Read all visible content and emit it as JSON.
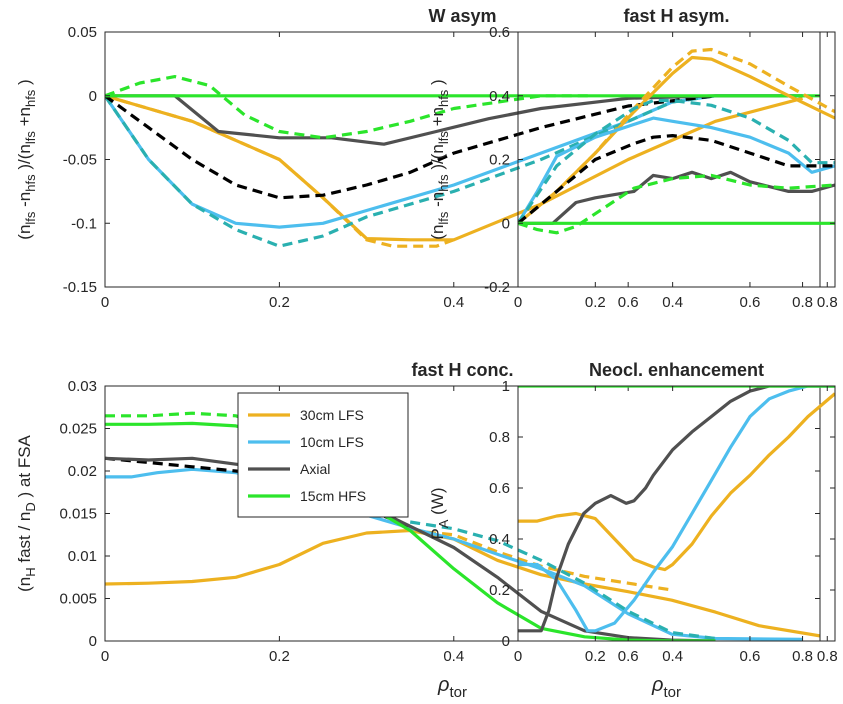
{
  "colors": {
    "orange": "#EDB120",
    "blue": "#4DBEEE",
    "teal": "#2AB0B0",
    "gray": "#505050",
    "green": "#2BE52B",
    "black": "#000000"
  },
  "chart_data": [
    {
      "type": "line",
      "title": "W asym",
      "ylabel": "(n lfs -n hfs )/(n lfs +n hfs )",
      "xlim": [
        0,
        0.82
      ],
      "ylim": [
        -0.15,
        0.05
      ],
      "xticks": [
        "0",
        "0.2",
        "0.4",
        "0.6",
        "0.8"
      ],
      "yticks": [
        "-0.15",
        "-0.1",
        "-0.05",
        "0",
        "0.05"
      ],
      "series": [
        {
          "color": "orange",
          "dashed": false,
          "x": [
            0,
            0.1,
            0.2,
            0.25,
            0.3,
            0.35,
            0.4,
            0.5,
            0.6,
            0.7,
            0.8
          ],
          "y": [
            0,
            -0.02,
            -0.05,
            -0.08,
            -0.112,
            -0.113,
            -0.113,
            -0.085,
            -0.05,
            -0.02,
            -0.002
          ]
        },
        {
          "color": "orange",
          "dashed": true,
          "x": [
            0,
            0.1,
            0.2,
            0.25,
            0.3,
            0.33,
            0.38,
            0.4
          ],
          "y": [
            0,
            -0.02,
            -0.05,
            -0.08,
            -0.113,
            -0.118,
            -0.118,
            -0.113
          ]
        },
        {
          "color": "blue",
          "dashed": false,
          "x": [
            0,
            0.05,
            0.1,
            0.15,
            0.2,
            0.25,
            0.3,
            0.4,
            0.5,
            0.6,
            0.65,
            0.7,
            0.8
          ],
          "y": [
            0,
            -0.05,
            -0.085,
            -0.1,
            -0.103,
            -0.1,
            -0.09,
            -0.07,
            -0.045,
            -0.02,
            -0.005,
            0,
            0
          ]
        },
        {
          "color": "teal",
          "dashed": true,
          "x": [
            0,
            0.05,
            0.1,
            0.15,
            0.2,
            0.25,
            0.3,
            0.4,
            0.5,
            0.6,
            0.65,
            0.7
          ],
          "y": [
            0,
            -0.05,
            -0.085,
            -0.105,
            -0.118,
            -0.11,
            -0.095,
            -0.075,
            -0.05,
            -0.02,
            -0.005,
            0
          ]
        },
        {
          "color": "black",
          "dashed": true,
          "x": [
            0,
            0.05,
            0.1,
            0.15,
            0.2,
            0.25,
            0.3,
            0.35,
            0.4,
            0.5,
            0.6,
            0.7
          ],
          "y": [
            0,
            -0.025,
            -0.05,
            -0.07,
            -0.08,
            -0.078,
            -0.07,
            -0.06,
            -0.045,
            -0.025,
            -0.008,
            0
          ]
        },
        {
          "color": "gray",
          "dashed": false,
          "x": [
            0,
            0.08,
            0.13,
            0.2,
            0.26,
            0.32,
            0.38,
            0.44,
            0.5,
            0.6,
            0.7,
            0.8
          ],
          "y": [
            0,
            0,
            -0.028,
            -0.033,
            -0.033,
            -0.038,
            -0.028,
            -0.018,
            -0.01,
            -0.002,
            0,
            0
          ]
        },
        {
          "color": "green",
          "dashed": true,
          "x": [
            0,
            0.04,
            0.08,
            0.12,
            0.16,
            0.2,
            0.25,
            0.3,
            0.35,
            0.4,
            0.5,
            0.56
          ],
          "y": [
            0,
            0.01,
            0.015,
            0.008,
            -0.015,
            -0.028,
            -0.033,
            -0.028,
            -0.02,
            -0.01,
            0,
            0
          ]
        },
        {
          "color": "green",
          "dashed": false,
          "x": [
            0,
            0.82
          ],
          "y": [
            0,
            0
          ]
        }
      ]
    },
    {
      "type": "line",
      "title": "fast H asym.",
      "ylabel": "(n lfs -n hfs )/(n lfs +n hfs )",
      "xlim": [
        0,
        0.82
      ],
      "ylim": [
        -0.2,
        0.6
      ],
      "xticks": [
        "0",
        "0.2",
        "0.4",
        "0.6",
        "0.8"
      ],
      "yticks": [
        "-0.2",
        "0",
        "0.2",
        "0.4",
        "0.6"
      ],
      "series": [
        {
          "color": "orange",
          "dashed": false,
          "x": [
            0,
            0.1,
            0.2,
            0.3,
            0.4,
            0.45,
            0.5,
            0.6,
            0.7,
            0.82
          ],
          "y": [
            0,
            0.1,
            0.22,
            0.35,
            0.47,
            0.52,
            0.515,
            0.46,
            0.4,
            0.33
          ]
        },
        {
          "color": "orange",
          "dashed": true,
          "x": [
            0,
            0.1,
            0.2,
            0.3,
            0.4,
            0.45,
            0.5,
            0.6,
            0.7,
            0.82
          ],
          "y": [
            0,
            0.1,
            0.22,
            0.36,
            0.49,
            0.54,
            0.545,
            0.5,
            0.43,
            0.35
          ]
        },
        {
          "color": "blue",
          "dashed": false,
          "x": [
            0,
            0.05,
            0.1,
            0.2,
            0.3,
            0.35,
            0.4,
            0.5,
            0.6,
            0.7,
            0.76,
            0.82
          ],
          "y": [
            0,
            0.1,
            0.21,
            0.27,
            0.31,
            0.33,
            0.32,
            0.3,
            0.27,
            0.22,
            0.16,
            0.18
          ]
        },
        {
          "color": "teal",
          "dashed": true,
          "x": [
            0,
            0.05,
            0.1,
            0.2,
            0.3,
            0.35,
            0.4,
            0.5,
            0.6,
            0.7,
            0.76,
            0.82
          ],
          "y": [
            0,
            0.09,
            0.18,
            0.28,
            0.36,
            0.385,
            0.385,
            0.37,
            0.33,
            0.26,
            0.19,
            0.19
          ]
        },
        {
          "color": "black",
          "dashed": true,
          "x": [
            0,
            0.1,
            0.2,
            0.3,
            0.35,
            0.4,
            0.5,
            0.6,
            0.7,
            0.82
          ],
          "y": [
            0,
            0.1,
            0.2,
            0.25,
            0.27,
            0.275,
            0.26,
            0.22,
            0.18,
            0.18
          ]
        },
        {
          "color": "gray",
          "dashed": false,
          "x": [
            0,
            0.09,
            0.15,
            0.2,
            0.25,
            0.3,
            0.35,
            0.4,
            0.45,
            0.5,
            0.55,
            0.6,
            0.7,
            0.76,
            0.82
          ],
          "y": [
            0,
            0,
            0.065,
            0.08,
            0.09,
            0.1,
            0.15,
            0.14,
            0.16,
            0.14,
            0.16,
            0.13,
            0.1,
            0.1,
            0.12
          ]
        },
        {
          "color": "green",
          "dashed": true,
          "x": [
            0,
            0.05,
            0.1,
            0.15,
            0.2,
            0.3,
            0.4,
            0.5,
            0.6,
            0.7,
            0.82
          ],
          "y": [
            0,
            -0.02,
            -0.03,
            -0.01,
            0.03,
            0.11,
            0.14,
            0.15,
            0.12,
            0.11,
            0.12
          ]
        },
        {
          "color": "green",
          "dashed": false,
          "x": [
            0,
            0.82
          ],
          "y": [
            0,
            0
          ]
        }
      ]
    },
    {
      "type": "line",
      "title": "fast H conc.",
      "ylabel": "(n H fast / n D ) at FSA",
      "xlim": [
        0,
        0.82
      ],
      "ylim": [
        0,
        0.03
      ],
      "xticks": [
        "0",
        "0.2",
        "0.4",
        "0.6",
        "0.8"
      ],
      "yticks": [
        "0",
        "0.005",
        "0.01",
        "0.015",
        "0.02",
        "0.025",
        "0.03"
      ],
      "legend": [
        "30cm LFS",
        "10cm LFS",
        "Axial",
        "15cm HFS"
      ],
      "legend_colors": [
        "orange",
        "blue",
        "gray",
        "green"
      ],
      "series": [
        {
          "color": "orange",
          "dashed": false,
          "x": [
            0,
            0.05,
            0.1,
            0.15,
            0.2,
            0.25,
            0.3,
            0.35,
            0.4,
            0.45,
            0.5,
            0.55,
            0.6,
            0.65,
            0.7,
            0.75,
            0.82
          ],
          "y": [
            0.0067,
            0.0068,
            0.007,
            0.0075,
            0.009,
            0.0115,
            0.0127,
            0.013,
            0.012,
            0.0095,
            0.0078,
            0.0067,
            0.0058,
            0.0048,
            0.0034,
            0.0018,
            0.0006
          ]
        },
        {
          "color": "orange",
          "dashed": true,
          "x": [
            0.35,
            0.4,
            0.45,
            0.5,
            0.55,
            0.6,
            0.65
          ],
          "y": [
            0.013,
            0.0125,
            0.0105,
            0.0088,
            0.0076,
            0.0068,
            0.006
          ]
        },
        {
          "color": "blue",
          "dashed": false,
          "x": [
            0,
            0.03,
            0.06,
            0.1,
            0.15,
            0.2,
            0.25,
            0.3,
            0.35,
            0.4,
            0.45,
            0.5,
            0.55,
            0.6,
            0.65,
            0.7,
            0.8
          ],
          "y": [
            0.0193,
            0.0193,
            0.0198,
            0.0202,
            0.0198,
            0.0188,
            0.0168,
            0.0148,
            0.0133,
            0.012,
            0.0102,
            0.0085,
            0.0065,
            0.0032,
            0.0008,
            0.0003,
            0.0002
          ]
        },
        {
          "color": "teal",
          "dashed": true,
          "x": [
            0.35,
            0.4,
            0.45,
            0.5,
            0.55,
            0.6,
            0.65,
            0.7
          ],
          "y": [
            0.014,
            0.0132,
            0.0118,
            0.0095,
            0.0068,
            0.0035,
            0.001,
            0.0003
          ]
        },
        {
          "color": "black",
          "dashed": true,
          "x": [
            0,
            0.05,
            0.1,
            0.15,
            0.2,
            0.25,
            0.3,
            0.35
          ],
          "y": [
            0.0215,
            0.021,
            0.0205,
            0.02,
            0.0193,
            0.0178,
            0.0155,
            0.0135
          ]
        },
        {
          "color": "gray",
          "dashed": false,
          "x": [
            0,
            0.05,
            0.1,
            0.15,
            0.2,
            0.25,
            0.3,
            0.35,
            0.4,
            0.45,
            0.5,
            0.55,
            0.6,
            0.65,
            0.7
          ],
          "y": [
            0.0215,
            0.0213,
            0.0215,
            0.0208,
            0.0202,
            0.0185,
            0.016,
            0.0135,
            0.011,
            0.0075,
            0.0035,
            0.0012,
            0.0004,
            0.0001,
            0
          ]
        },
        {
          "color": "green",
          "dashed": true,
          "x": [
            0,
            0.05,
            0.1,
            0.15,
            0.2,
            0.25,
            0.3
          ],
          "y": [
            0.0265,
            0.0265,
            0.0268,
            0.0265,
            0.0245,
            0.0205,
            0.0165
          ]
        },
        {
          "color": "green",
          "dashed": false,
          "x": [
            0,
            0.05,
            0.1,
            0.15,
            0.2,
            0.25,
            0.3,
            0.35,
            0.4,
            0.45,
            0.5,
            0.55,
            0.6,
            0.65,
            0.7
          ],
          "y": [
            0.0255,
            0.0255,
            0.0256,
            0.0253,
            0.024,
            0.02,
            0.016,
            0.013,
            0.0085,
            0.0045,
            0.0015,
            0.0005,
            0.0001,
            0,
            0
          ]
        }
      ]
    },
    {
      "type": "line",
      "title": "Neocl. enhancement",
      "ylabel": "P A (W)",
      "xlim": [
        0,
        0.82
      ],
      "ylim": [
        0,
        1
      ],
      "xticks": [
        "0",
        "0.2",
        "0.4",
        "0.6",
        "0.8"
      ],
      "yticks": [
        "0",
        "0.2",
        "0.4",
        "0.6",
        "0.8",
        "1"
      ],
      "series": [
        {
          "color": "orange",
          "dashed": false,
          "x": [
            0,
            0.05,
            0.1,
            0.15,
            0.2,
            0.25,
            0.3,
            0.35,
            0.38,
            0.4,
            0.45,
            0.5,
            0.55,
            0.6,
            0.65,
            0.7,
            0.75,
            0.82
          ],
          "y": [
            0.47,
            0.47,
            0.49,
            0.5,
            0.48,
            0.4,
            0.32,
            0.29,
            0.28,
            0.3,
            0.38,
            0.49,
            0.58,
            0.65,
            0.73,
            0.8,
            0.88,
            0.97
          ]
        },
        {
          "color": "blue",
          "dashed": false,
          "x": [
            0,
            0.05,
            0.1,
            0.15,
            0.18,
            0.2,
            0.25,
            0.3,
            0.35,
            0.4,
            0.45,
            0.5,
            0.55,
            0.6,
            0.65,
            0.7,
            0.75,
            0.82
          ],
          "y": [
            0.3,
            0.3,
            0.24,
            0.12,
            0.04,
            0.04,
            0.07,
            0.16,
            0.27,
            0.37,
            0.5,
            0.63,
            0.76,
            0.88,
            0.95,
            0.98,
            1,
            1
          ]
        },
        {
          "color": "gray",
          "dashed": false,
          "x": [
            0,
            0.06,
            0.08,
            0.1,
            0.13,
            0.17,
            0.2,
            0.24,
            0.28,
            0.3,
            0.33,
            0.35,
            0.4,
            0.45,
            0.5,
            0.55,
            0.6,
            0.65,
            0.7,
            0.82
          ],
          "y": [
            0.04,
            0.04,
            0.12,
            0.25,
            0.38,
            0.5,
            0.54,
            0.57,
            0.54,
            0.55,
            0.6,
            0.65,
            0.75,
            0.82,
            0.88,
            0.94,
            0.98,
            1,
            1,
            1
          ]
        },
        {
          "color": "green",
          "dashed": false,
          "x": [
            0,
            0.82
          ],
          "y": [
            1,
            1
          ]
        }
      ]
    }
  ]
}
